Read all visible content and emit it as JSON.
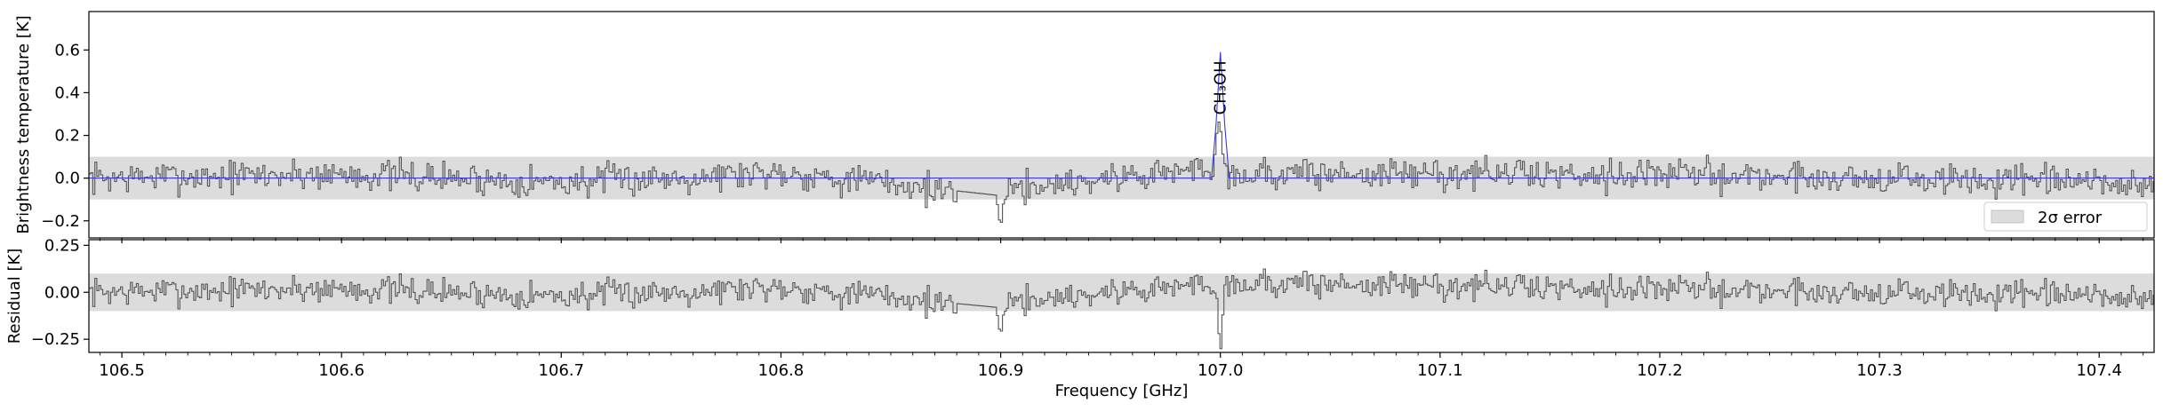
{
  "chart_data": [
    {
      "type": "line",
      "panel": "top",
      "xlabel": "",
      "ylabel": "Brightness temperature [K]",
      "xlim": [
        106.485,
        107.425
      ],
      "ylim": [
        -0.28,
        0.78
      ],
      "yticks": [
        -0.2,
        0.0,
        0.2,
        0.4,
        0.6
      ],
      "ytick_labels": [
        "−0.2",
        "0.0",
        "0.2",
        "0.4",
        "0.6"
      ],
      "error_band": [
        -0.1,
        0.1
      ],
      "legend": {
        "entries": [
          "2σ error"
        ],
        "placement": "lower-right"
      },
      "annotations": [
        {
          "text": "CH₃OH",
          "x": 107.0,
          "rotation": 90
        }
      ],
      "series": [
        {
          "role": "observed spectrum",
          "style": "steps",
          "color": "#555555",
          "x": [
            106.485,
            106.6,
            106.7,
            106.8,
            106.898,
            106.9,
            106.902,
            106.997,
            106.999,
            107.0,
            107.001,
            107.003,
            107.2,
            107.425
          ],
          "values": [
            0.0,
            0.02,
            -0.02,
            0.03,
            -0.08,
            -0.24,
            -0.05,
            0.05,
            0.27,
            0.25,
            0.12,
            0.02,
            0.02,
            -0.03
          ]
        },
        {
          "role": "model",
          "style": "line",
          "color": "#3a3ad6",
          "x": [
            106.485,
            106.996,
            106.998,
            107.0,
            107.002,
            107.004,
            107.425
          ],
          "values": [
            0.0,
            0.0,
            0.25,
            0.59,
            0.25,
            0.0,
            0.0
          ]
        }
      ]
    },
    {
      "type": "line",
      "panel": "bottom",
      "xlabel": "Frequency [GHz]",
      "ylabel": "Residual [K]",
      "xlim": [
        106.485,
        107.425
      ],
      "ylim": [
        -0.32,
        0.28
      ],
      "yticks": [
        -0.25,
        0.0,
        0.25
      ],
      "ytick_labels": [
        "−0.25",
        "0.00",
        "0.25"
      ],
      "xticks": [
        106.5,
        106.6,
        106.7,
        106.8,
        106.9,
        107.0,
        107.1,
        107.2,
        107.3,
        107.4
      ],
      "xtick_labels": [
        "106.5",
        "106.6",
        "106.7",
        "106.8",
        "106.9",
        "107.0",
        "107.1",
        "107.2",
        "107.3",
        "107.4"
      ],
      "error_band": [
        -0.1,
        0.1
      ],
      "series": [
        {
          "role": "residual",
          "style": "steps",
          "color": "#555555",
          "x": [
            106.485,
            106.6,
            106.7,
            106.8,
            106.898,
            106.9,
            106.902,
            106.998,
            107.0,
            107.002,
            107.2,
            107.425
          ],
          "values": [
            0.0,
            0.02,
            -0.02,
            0.03,
            -0.08,
            -0.24,
            -0.05,
            0.05,
            -0.35,
            0.05,
            0.02,
            -0.03
          ]
        }
      ]
    }
  ]
}
